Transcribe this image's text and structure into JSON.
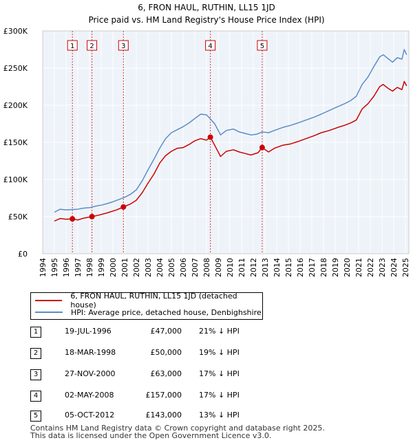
{
  "chart_data": {
    "type": "line",
    "title": "6, FRON HAUL, RUTHIN, LL15 1JD",
    "subtitle": "Price paid vs. HM Land Registry's House Price Index (HPI)",
    "x_ticks": [
      "1994",
      "1995",
      "1996",
      "1997",
      "1998",
      "1999",
      "2000",
      "2001",
      "2002",
      "2003",
      "2004",
      "2005",
      "2006",
      "2007",
      "2008",
      "2009",
      "2010",
      "2011",
      "2012",
      "2013",
      "2014",
      "2015",
      "2016",
      "2017",
      "2018",
      "2019",
      "2020",
      "2021",
      "2022",
      "2023",
      "2024",
      "2025"
    ],
    "y_ticks": [
      "£0",
      "£50K",
      "£100K",
      "£150K",
      "£200K",
      "£250K",
      "£300K"
    ],
    "xlim": [
      1994,
      2025.2
    ],
    "ylim": [
      0,
      300000
    ],
    "colors": {
      "property": "#cc0000",
      "hpi": "#5b8cc7",
      "marker_line": "#dd3333"
    },
    "series": [
      {
        "name": "6, FRON HAUL, RUTHIN, LL15 1JD (detached house)",
        "color": "#cc0000",
        "points": [
          [
            1995.0,
            44000
          ],
          [
            1995.5,
            47500
          ],
          [
            1996.0,
            46500
          ],
          [
            1996.54,
            47000
          ],
          [
            1997.0,
            45500
          ],
          [
            1997.5,
            48000
          ],
          [
            1998.21,
            50000
          ],
          [
            1998.8,
            52000
          ],
          [
            1999.5,
            55000
          ],
          [
            2000.3,
            59000
          ],
          [
            2000.9,
            63000
          ],
          [
            2001.5,
            67000
          ],
          [
            2002.0,
            72000
          ],
          [
            2002.5,
            82000
          ],
          [
            2003.0,
            95000
          ],
          [
            2003.5,
            107000
          ],
          [
            2004.0,
            122000
          ],
          [
            2004.5,
            132000
          ],
          [
            2005.0,
            138000
          ],
          [
            2005.5,
            142000
          ],
          [
            2006.0,
            143000
          ],
          [
            2006.5,
            147000
          ],
          [
            2007.0,
            152000
          ],
          [
            2007.5,
            155000
          ],
          [
            2008.0,
            153000
          ],
          [
            2008.33,
            157000
          ],
          [
            2008.7,
            146000
          ],
          [
            2009.2,
            131000
          ],
          [
            2009.7,
            138000
          ],
          [
            2010.3,
            140000
          ],
          [
            2010.8,
            137000
          ],
          [
            2011.3,
            135000
          ],
          [
            2011.8,
            133000
          ],
          [
            2012.4,
            136000
          ],
          [
            2012.76,
            143000
          ],
          [
            2013.3,
            137000
          ],
          [
            2013.8,
            142000
          ],
          [
            2014.5,
            146000
          ],
          [
            2015.2,
            148000
          ],
          [
            2015.8,
            151000
          ],
          [
            2016.5,
            155000
          ],
          [
            2017.2,
            159000
          ],
          [
            2017.8,
            163000
          ],
          [
            2018.5,
            166000
          ],
          [
            2019.2,
            170000
          ],
          [
            2019.8,
            173000
          ],
          [
            2020.3,
            176000
          ],
          [
            2020.8,
            180000
          ],
          [
            2021.3,
            195000
          ],
          [
            2021.8,
            202000
          ],
          [
            2022.3,
            212000
          ],
          [
            2022.8,
            225000
          ],
          [
            2023.1,
            228000
          ],
          [
            2023.5,
            223000
          ],
          [
            2023.9,
            219000
          ],
          [
            2024.3,
            224000
          ],
          [
            2024.7,
            221000
          ],
          [
            2024.9,
            232000
          ],
          [
            2025.1,
            226000
          ]
        ]
      },
      {
        "name": "HPI: Average price, detached house, Denbighshire",
        "color": "#5b8cc7",
        "points": [
          [
            1995.0,
            56000
          ],
          [
            1995.5,
            60000
          ],
          [
            1996.0,
            59000
          ],
          [
            1996.5,
            59500
          ],
          [
            1997.0,
            60000
          ],
          [
            1997.5,
            61500
          ],
          [
            1998.0,
            62000
          ],
          [
            1998.5,
            64000
          ],
          [
            1999.0,
            65500
          ],
          [
            1999.5,
            67500
          ],
          [
            2000.0,
            70000
          ],
          [
            2000.5,
            73000
          ],
          [
            2001.0,
            76000
          ],
          [
            2001.5,
            80000
          ],
          [
            2002.0,
            86000
          ],
          [
            2002.5,
            98000
          ],
          [
            2003.0,
            113000
          ],
          [
            2003.5,
            127000
          ],
          [
            2004.0,
            142000
          ],
          [
            2004.5,
            155000
          ],
          [
            2005.0,
            163000
          ],
          [
            2005.5,
            167000
          ],
          [
            2006.0,
            171000
          ],
          [
            2006.5,
            176000
          ],
          [
            2007.0,
            182000
          ],
          [
            2007.5,
            188000
          ],
          [
            2008.0,
            187000
          ],
          [
            2008.3,
            182000
          ],
          [
            2008.7,
            175000
          ],
          [
            2009.2,
            160000
          ],
          [
            2009.7,
            166000
          ],
          [
            2010.3,
            168000
          ],
          [
            2010.8,
            164000
          ],
          [
            2011.3,
            162000
          ],
          [
            2011.8,
            160000
          ],
          [
            2012.3,
            161000
          ],
          [
            2012.76,
            164000
          ],
          [
            2013.3,
            163000
          ],
          [
            2013.8,
            166000
          ],
          [
            2014.5,
            170000
          ],
          [
            2015.2,
            173000
          ],
          [
            2015.8,
            176000
          ],
          [
            2016.5,
            180000
          ],
          [
            2017.2,
            184000
          ],
          [
            2017.8,
            188000
          ],
          [
            2018.5,
            193000
          ],
          [
            2019.2,
            198000
          ],
          [
            2019.8,
            202000
          ],
          [
            2020.3,
            206000
          ],
          [
            2020.8,
            212000
          ],
          [
            2021.3,
            228000
          ],
          [
            2021.8,
            238000
          ],
          [
            2022.3,
            252000
          ],
          [
            2022.8,
            265000
          ],
          [
            2023.1,
            268000
          ],
          [
            2023.5,
            263000
          ],
          [
            2023.9,
            258000
          ],
          [
            2024.3,
            264000
          ],
          [
            2024.7,
            262000
          ],
          [
            2024.9,
            275000
          ],
          [
            2025.1,
            268000
          ]
        ]
      }
    ],
    "sales": [
      {
        "num": "1",
        "x": 1996.54,
        "price": 47000
      },
      {
        "num": "2",
        "x": 1998.21,
        "price": 50000
      },
      {
        "num": "3",
        "x": 2000.9,
        "price": 63000
      },
      {
        "num": "4",
        "x": 2008.33,
        "price": 157000
      },
      {
        "num": "5",
        "x": 2012.76,
        "price": 143000
      }
    ]
  },
  "title": {
    "line1": "6, FRON HAUL, RUTHIN, LL15 1JD",
    "line2": "Price paid vs. HM Land Registry's House Price Index (HPI)"
  },
  "legend": {
    "property_label": "6, FRON HAUL, RUTHIN, LL15 1JD (detached house)",
    "hpi_label": "HPI: Average price, detached house, Denbighshire"
  },
  "sales_table": [
    {
      "num": "1",
      "date": "19-JUL-1996",
      "price": "£47,000",
      "hpi": "21% ↓ HPI"
    },
    {
      "num": "2",
      "date": "18-MAR-1998",
      "price": "£50,000",
      "hpi": "19% ↓ HPI"
    },
    {
      "num": "3",
      "date": "27-NOV-2000",
      "price": "£63,000",
      "hpi": "17% ↓ HPI"
    },
    {
      "num": "4",
      "date": "02-MAY-2008",
      "price": "£157,000",
      "hpi": "17% ↓ HPI"
    },
    {
      "num": "5",
      "date": "05-OCT-2012",
      "price": "£143,000",
      "hpi": "13% ↓ HPI"
    }
  ],
  "footer": {
    "line1": "Contains HM Land Registry data © Crown copyright and database right 2025.",
    "line2": "This data is licensed under the Open Government Licence v3.0."
  }
}
